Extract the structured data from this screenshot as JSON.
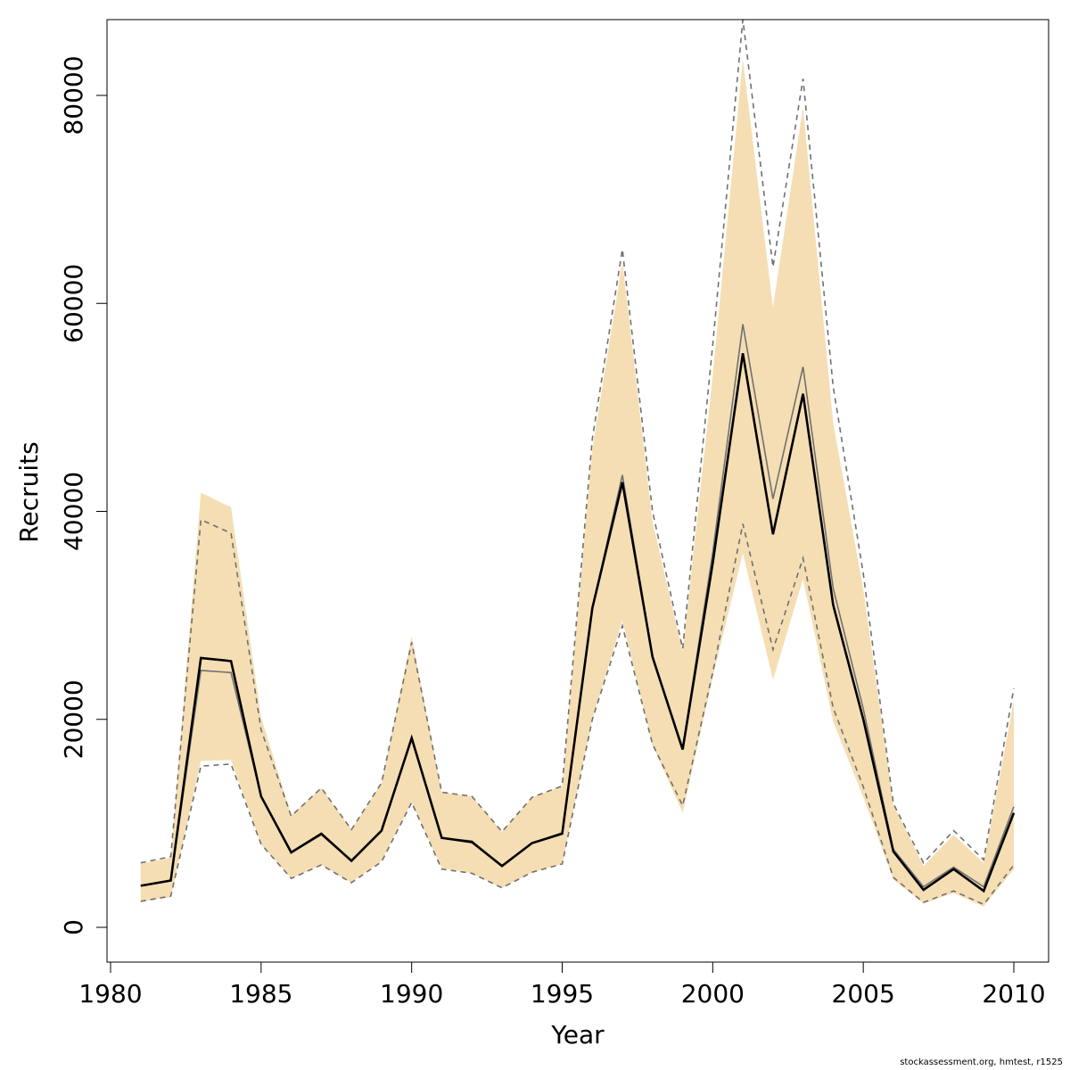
{
  "chart_data": {
    "type": "line",
    "title": "",
    "xlabel": "Year",
    "ylabel": "Recruits",
    "xlim": [
      1980,
      2011
    ],
    "ylim": [
      -3500,
      87000
    ],
    "x_ticks": [
      1980,
      1985,
      1990,
      1995,
      2000,
      2005,
      2010
    ],
    "y_ticks": [
      0,
      20000,
      40000,
      60000,
      80000
    ],
    "x": [
      1981,
      1982,
      1983,
      1984,
      1985,
      1986,
      1987,
      1988,
      1989,
      1990,
      1991,
      1992,
      1993,
      1994,
      1995,
      1996,
      1997,
      1998,
      1999,
      2000,
      2001,
      2002,
      2003,
      2004,
      2005,
      2006,
      2007,
      2008,
      2009,
      2010
    ],
    "band": {
      "lower": [
        2500,
        2900,
        16000,
        16100,
        8000,
        4700,
        6000,
        4300,
        6400,
        12000,
        5700,
        5200,
        3800,
        5300,
        6100,
        20000,
        29500,
        17500,
        11000,
        24000,
        36000,
        23800,
        33500,
        19800,
        12500,
        4600,
        2300,
        3300,
        2000,
        5600
      ],
      "upper": [
        6100,
        6700,
        41800,
        40400,
        20200,
        10800,
        13400,
        9400,
        13900,
        28000,
        13000,
        12600,
        9200,
        12500,
        13600,
        46000,
        64000,
        39000,
        26500,
        53000,
        83500,
        59600,
        78900,
        48500,
        32500,
        11800,
        5900,
        8900,
        6200,
        21800
      ],
      "color": "#f5deb3"
    },
    "series": [
      {
        "values": [
          4000,
          4500,
          24700,
          24500,
          12600,
          7200,
          8900,
          6400,
          9300,
          18200,
          8600,
          8300,
          5900,
          8100,
          9100,
          30700,
          43500,
          26000,
          17200,
          36000,
          58000,
          41200,
          53900,
          32600,
          21000,
          7500,
          3900,
          5800,
          3900,
          11600
        ],
        "color": "#707070",
        "style": "solid-thin"
      },
      {
        "values": [
          2500,
          3000,
          15500,
          15700,
          8000,
          4700,
          6000,
          4300,
          6300,
          12000,
          5600,
          5200,
          3800,
          5300,
          6100,
          20000,
          29000,
          17600,
          11700,
          24500,
          38800,
          26700,
          35500,
          21100,
          13500,
          4800,
          2400,
          3500,
          2200,
          6000
        ],
        "color": "#707070",
        "style": "dashed"
      },
      {
        "values": [
          6200,
          6800,
          39200,
          37900,
          19000,
          10700,
          13400,
          9400,
          13900,
          27400,
          13000,
          12600,
          9200,
          12500,
          13600,
          47000,
          65200,
          40000,
          26800,
          56000,
          87300,
          63500,
          81600,
          52000,
          34000,
          11900,
          6200,
          9300,
          6500,
          23000
        ],
        "color": "#707070",
        "style": "dashed"
      },
      {
        "values": [
          4000,
          4500,
          25900,
          25600,
          12600,
          7200,
          9000,
          6400,
          9300,
          18200,
          8600,
          8200,
          5900,
          8100,
          9000,
          30700,
          42800,
          26000,
          17100,
          35000,
          55200,
          37800,
          51300,
          31000,
          20000,
          7300,
          3600,
          5600,
          3500,
          11000
        ],
        "color": "#000000",
        "style": "solid-thick"
      }
    ],
    "grid": false,
    "legend": "none"
  },
  "footer": "stockassessment.org, hmtest, r1525"
}
